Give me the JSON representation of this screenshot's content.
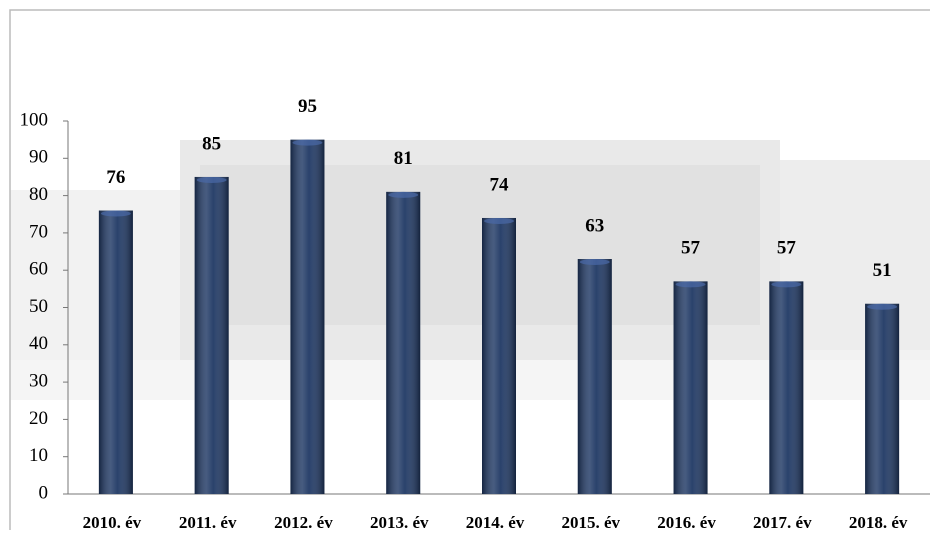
{
  "chart_data": {
    "type": "bar",
    "categories": [
      "2010. év",
      "2011. év",
      "2012. év",
      "2013. év",
      "2014. év",
      "2015. év",
      "2016. év",
      "2017. év",
      "2018. év"
    ],
    "values": [
      76,
      85,
      95,
      81,
      74,
      63,
      57,
      57,
      51
    ],
    "color": "#1f3864",
    "ylim": [
      0,
      100
    ],
    "yticks": [
      0,
      10,
      20,
      30,
      40,
      50,
      60,
      70,
      80,
      90,
      100
    ],
    "grid": false
  }
}
